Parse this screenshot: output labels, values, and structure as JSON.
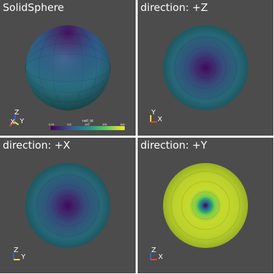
{
  "panels": [
    {
      "title": "SolidSphere",
      "axes": [
        "Z",
        "X",
        "Y"
      ]
    },
    {
      "title": "direction: +Z",
      "axes": [
        "Y",
        "X"
      ]
    },
    {
      "title": "direction: +X",
      "axes": [
        "Z",
        "Y"
      ]
    },
    {
      "title": "direction: +Y",
      "axes": [
        "Z",
        "X"
      ]
    }
  ],
  "colorbar": {
    "title": "cell_id",
    "ticks": [
      "0.00",
      "210",
      "420",
      "630",
      "840"
    ]
  },
  "colors": {
    "background": "#4c4c4c",
    "border": "#ffffff",
    "axis_x": "#e5462e",
    "axis_y": "#f2e62f",
    "axis_z": "#3a5fd6"
  }
}
